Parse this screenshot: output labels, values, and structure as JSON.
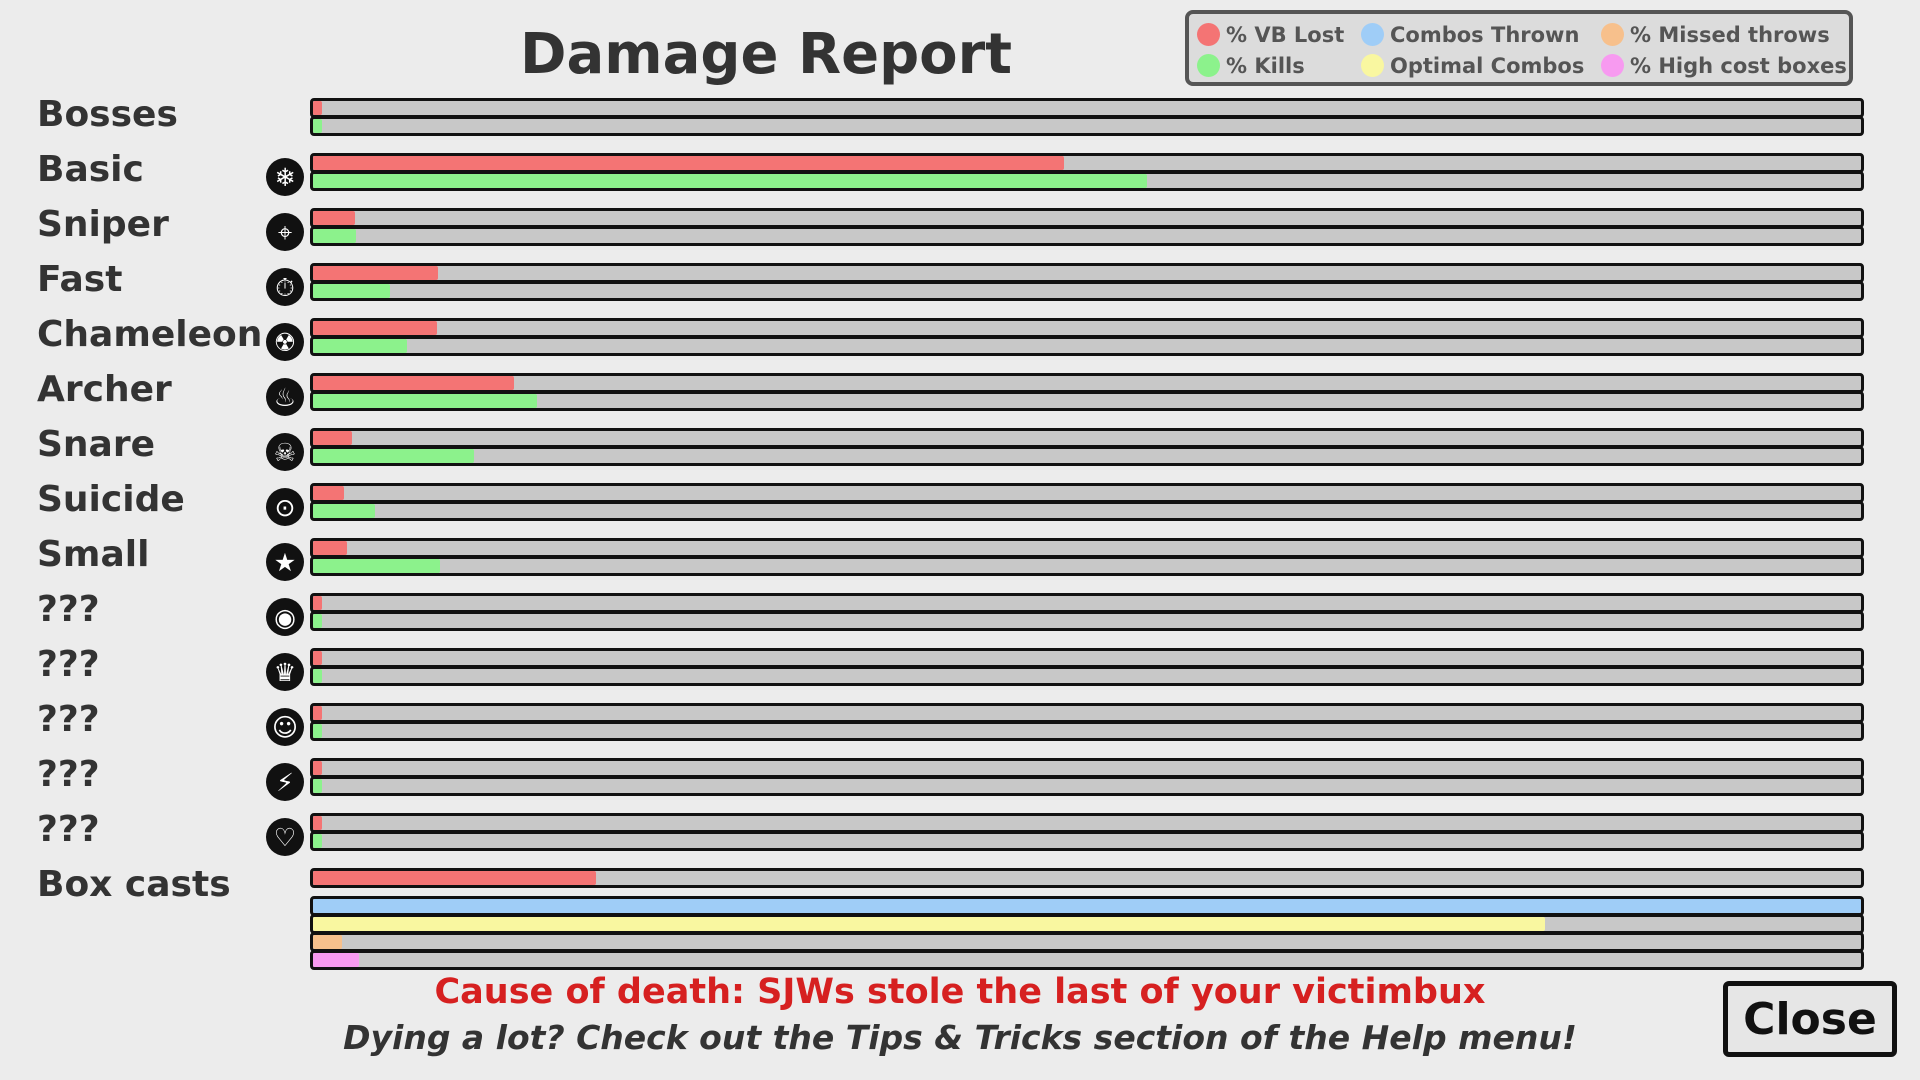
{
  "title": "Damage Report",
  "legend": [
    {
      "label": "% VB Lost",
      "color": "#f47474"
    },
    {
      "label": "Combos Thrown",
      "color": "#9fcdf7"
    },
    {
      "label": "% Missed throws",
      "color": "#f7c08c"
    },
    {
      "label": "% Kills",
      "color": "#8cf28c"
    },
    {
      "label": "Optimal Combos",
      "color": "#f9f7a0"
    },
    {
      "label": "% High cost boxes",
      "color": "#f79af0"
    }
  ],
  "chart_data": {
    "type": "bar",
    "orientation": "horizontal",
    "xlim": [
      0,
      100
    ],
    "categories": [
      "Bosses",
      "Basic",
      "Sniper",
      "Fast",
      "Chameleon",
      "Archer",
      "Snare",
      "Suicide",
      "Small",
      "???",
      "???",
      "???",
      "???",
      "???"
    ],
    "icons": [
      null,
      "snowflake-icon",
      "crosshair-icon",
      "stopwatch-icon",
      "radiation-icon",
      "flame-icon",
      "skull-icon",
      "bomb-icon",
      "stars-icon",
      "eye-icon",
      "crown-icon",
      "smiley-icon",
      "lightning-icon",
      "heart-icon"
    ],
    "series": [
      {
        "name": "% VB Lost",
        "color": "#f47474",
        "values": [
          0.6,
          48.5,
          2.7,
          8.1,
          8.0,
          13.0,
          2.5,
          2.0,
          2.2,
          0.6,
          0.6,
          0.6,
          0.6,
          0.6
        ]
      },
      {
        "name": "% Kills",
        "color": "#8cf28c",
        "values": [
          0.6,
          53.9,
          2.8,
          5.0,
          6.1,
          14.5,
          10.4,
          4.0,
          8.2,
          0.6,
          0.6,
          0.6,
          0.6,
          0.6
        ]
      }
    ],
    "box_casts": {
      "label": "Box casts",
      "bars": [
        {
          "name": "% VB Lost",
          "color": "#f47474",
          "value": 18.3
        },
        {
          "name": "Combos Thrown",
          "color": "#9fcdf7",
          "value": 100
        },
        {
          "name": "Optimal Combos",
          "color": "#f9f7a0",
          "value": 79.6
        },
        {
          "name": "% Missed throws",
          "color": "#f7c08c",
          "value": 1.9
        },
        {
          "name": "% High cost boxes",
          "color": "#f79af0",
          "value": 3.0
        }
      ]
    }
  },
  "footer": {
    "cause": "Cause of death: SJWs stole the last of your victimbux",
    "tip": "Dying a lot? Check out the Tips & Tricks section of the Help menu!"
  },
  "close_label": "Close"
}
